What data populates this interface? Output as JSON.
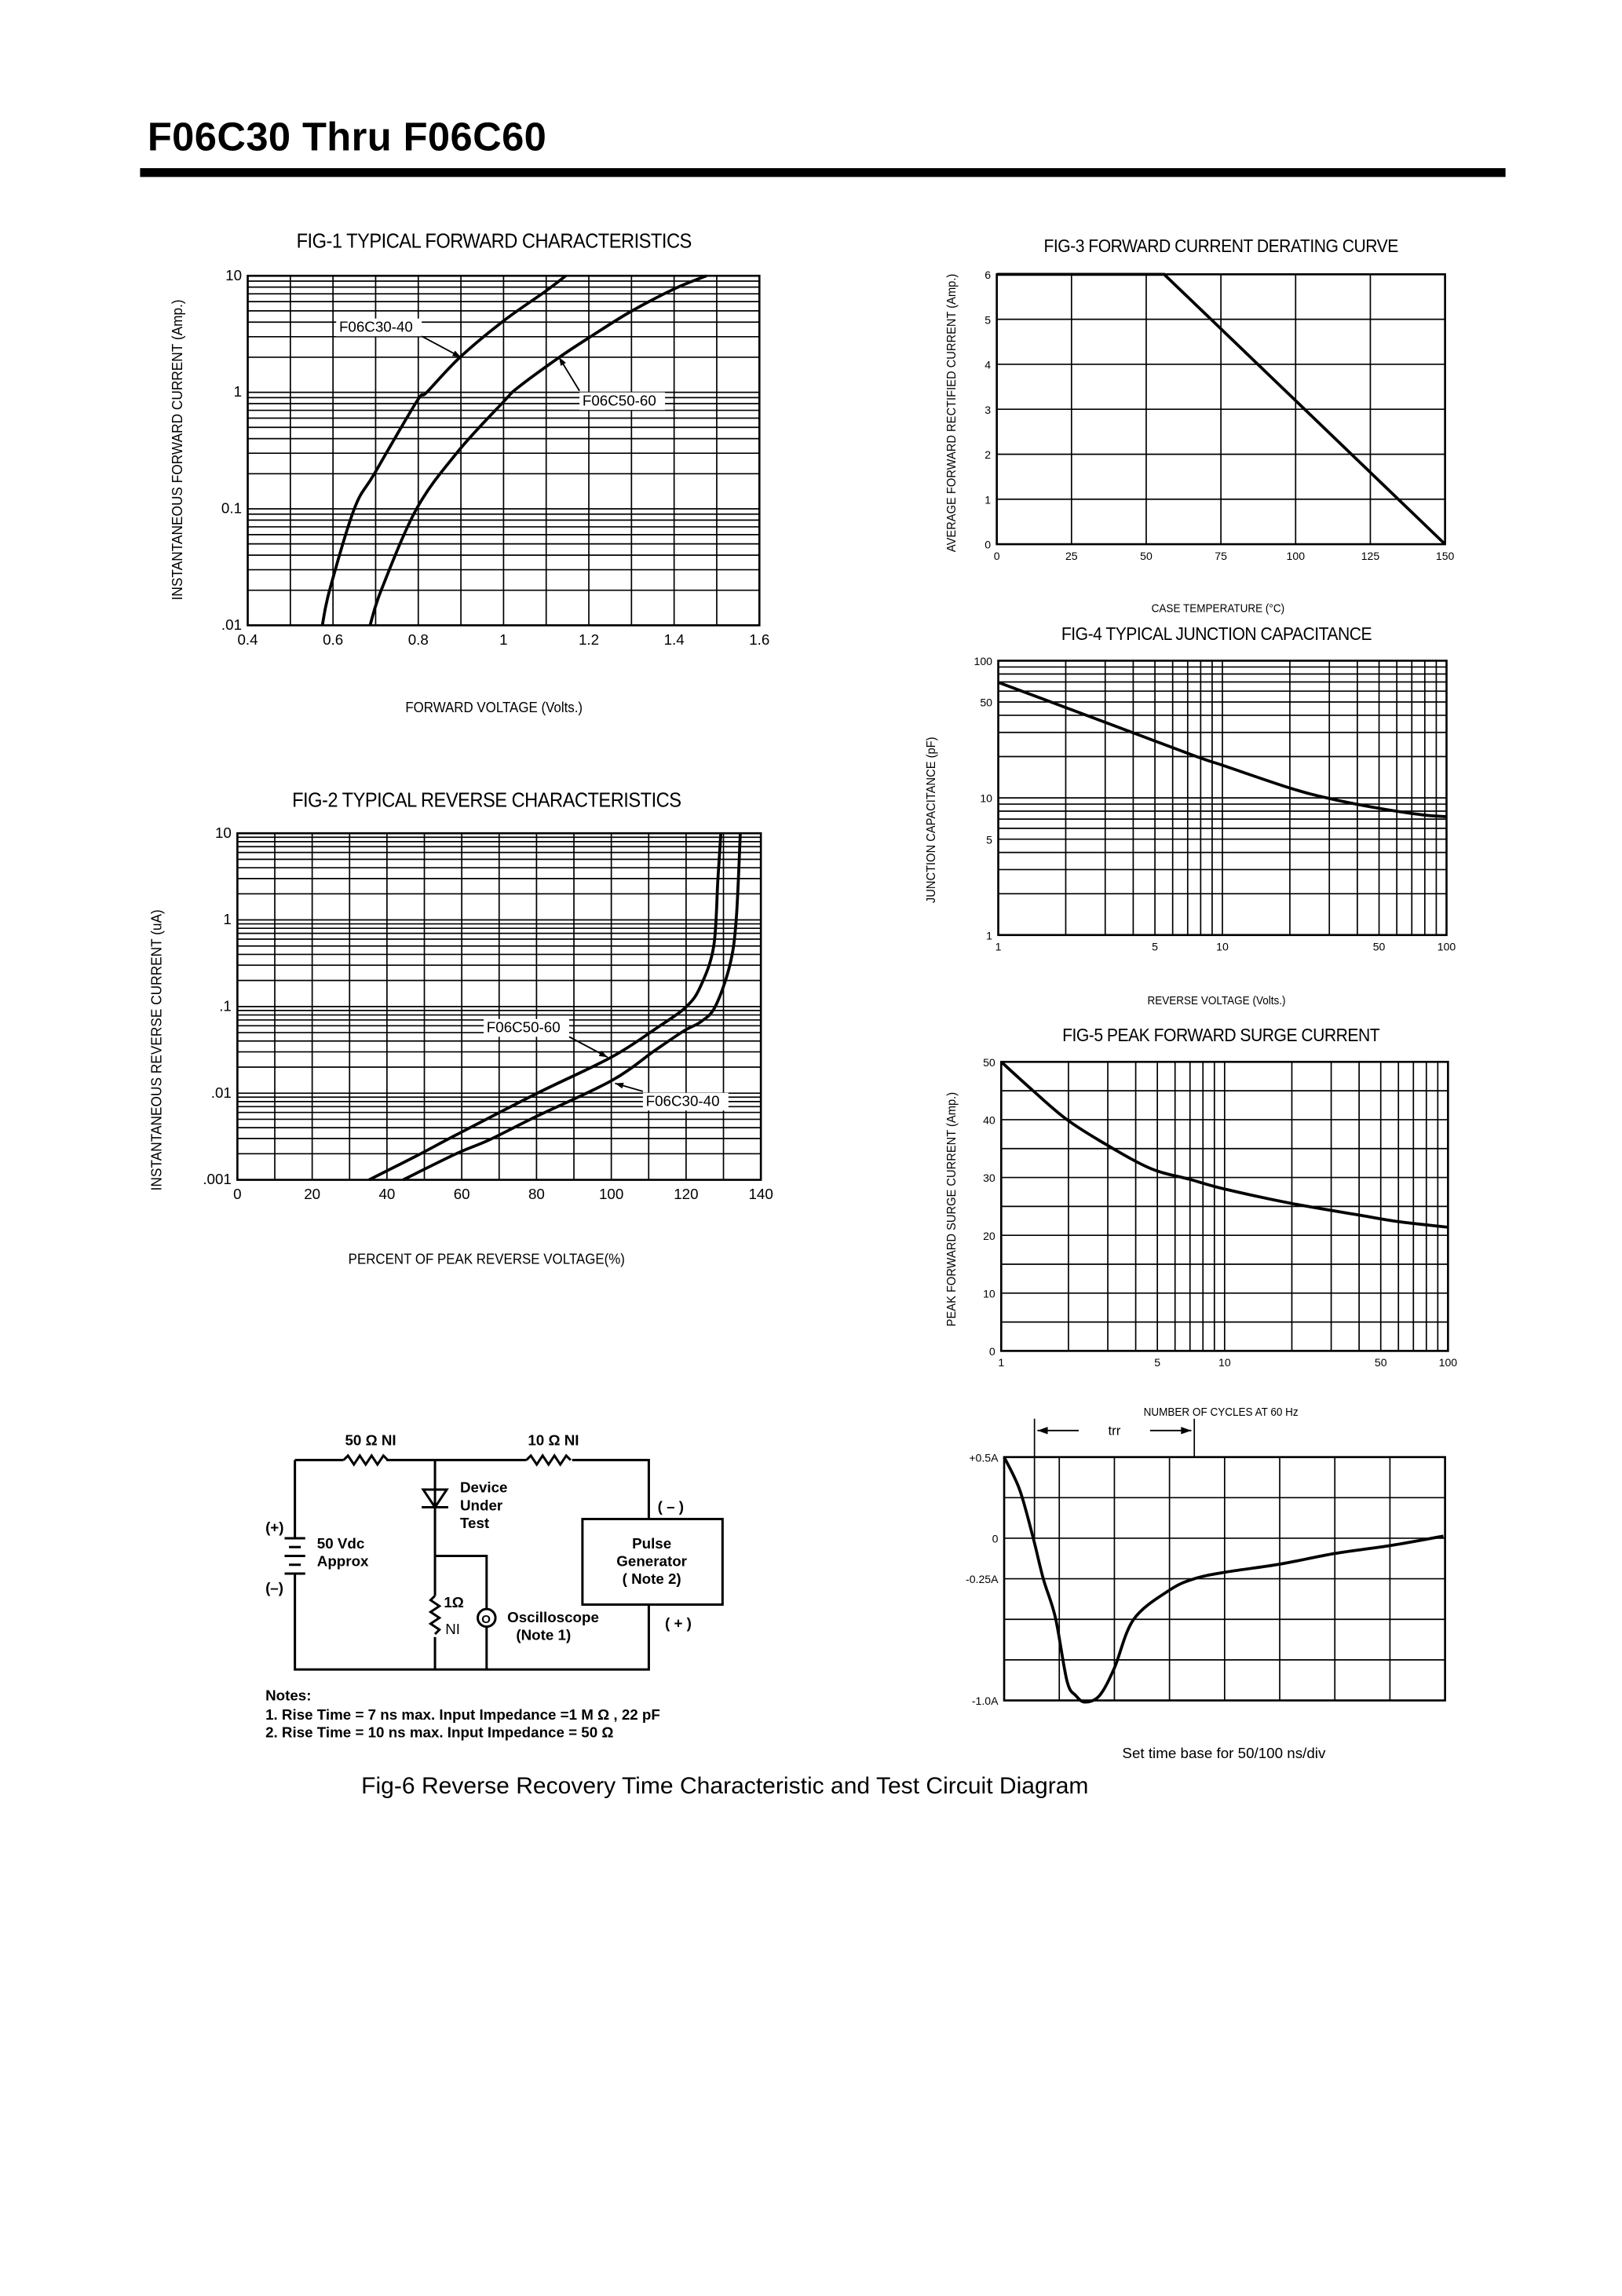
{
  "header": {
    "title": "F06C30 Thru F06C60"
  },
  "fig6": {
    "caption": "Fig-6 Reverse Recovery Time Characteristic and Test Circuit Diagram",
    "timebase_note": "Set time base for 50/100  ns/div",
    "circuit": {
      "r1_label": "50 Ω  NI",
      "r2_label": "10 Ω  NI",
      "dut_line1": "Device",
      "dut_line2": "Under",
      "dut_line3": "Test",
      "battery_plus": "(+)",
      "battery_minus": "(–)",
      "battery_line1": "50 Vdc",
      "battery_line2": "Approx",
      "r3_label": "1Ω",
      "r3_sub": "NI",
      "scope_symbol": "O",
      "scope_line1": "Oscilloscope",
      "scope_line2": "(Note 1)",
      "pulse_line1": "Pulse",
      "pulse_line2": "Generator",
      "pulse_line3": "( Note 2)",
      "pulse_minus": "( – )",
      "pulse_plus": "( + )",
      "notes_title": "Notes:",
      "note1": "1. Rise Time = 7 ns max. Input Impedance =1 M Ω , 22 pF",
      "note2": "2. Rise Time = 10 ns max. Input Impedance = 50 Ω"
    }
  },
  "chart_data": [
    {
      "id": "fig1",
      "type": "line",
      "title": "FIG-1 TYPICAL FORWARD CHARACTERISTICS",
      "xlabel": "FORWARD VOLTAGE (Volts.)",
      "ylabel": "INSTANTANEOUS FORWARD CURRENT (Amp.)",
      "xscale": "linear",
      "yscale": "log",
      "xlim": [
        0.4,
        1.6
      ],
      "ylim": [
        0.01,
        10
      ],
      "grid": true,
      "xticks": [
        0.4,
        0.6,
        0.8,
        1,
        1.2,
        1.4,
        1.6
      ],
      "xtick_labels": [
        "0.4",
        "0.6",
        "0.8",
        "1",
        "1.2",
        "1.4",
        "1.6"
      ],
      "yticks": [
        0.01,
        0.1,
        1,
        10
      ],
      "ytick_labels": [
        ".01",
        "0.1",
        "1",
        "10"
      ],
      "series": [
        {
          "name": "F06C30-40",
          "x": [
            0.575,
            0.592,
            0.65,
            0.697,
            0.796,
            0.82,
            0.898,
            1.0,
            1.097,
            1.146
          ],
          "y": [
            0.01,
            0.02,
            0.1,
            0.2,
            0.83,
            1.0,
            2.0,
            4.1,
            7.3,
            10
          ]
        },
        {
          "name": "F06C50-60",
          "x": [
            0.687,
            0.713,
            0.796,
            0.893,
            1.0,
            1.034,
            1.131,
            1.204,
            1.297,
            1.403,
            1.476
          ],
          "y": [
            0.01,
            0.02,
            0.1,
            0.31,
            0.83,
            1.1,
            2.0,
            3.0,
            4.9,
            7.8,
            10
          ]
        }
      ],
      "annotations": [
        {
          "text": "F06C30-40",
          "target": [
            0.9,
            2.0
          ]
        },
        {
          "text": "F06C50-60",
          "target": [
            1.13,
            2.0
          ]
        }
      ]
    },
    {
      "id": "fig2",
      "type": "line",
      "title": "FIG-2 TYPICAL REVERSE CHARACTERISTICS",
      "xlabel": "PERCENT OF PEAK REVERSE VOLTAGE(%)",
      "ylabel": "INSTANTANEOUS REVERSE CURRENT (uA)",
      "xscale": "linear",
      "yscale": "log",
      "xlim": [
        0,
        140
      ],
      "ylim": [
        0.001,
        10
      ],
      "grid": true,
      "xticks": [
        0,
        20,
        40,
        60,
        80,
        100,
        120,
        140
      ],
      "xtick_labels": [
        "0",
        "20",
        "40",
        "60",
        "80",
        "100",
        "120",
        "140"
      ],
      "yticks": [
        0.001,
        0.01,
        0.1,
        1,
        10
      ],
      "ytick_labels": [
        ".001",
        ".01",
        ".1",
        "1",
        "10"
      ],
      "series": [
        {
          "name": "F06C50-60",
          "x": [
            35.2,
            48,
            58.5,
            80,
            100,
            112,
            120.1,
            124,
            127.4,
            128.5,
            129.3
          ],
          "y": [
            0.001,
            0.0019,
            0.0033,
            0.0099,
            0.026,
            0.056,
            0.1,
            0.176,
            0.5,
            2.9,
            10
          ]
        },
        {
          "name": "F06C30-40",
          "x": [
            44.3,
            58.5,
            67.4,
            80,
            100,
            111.6,
            119.3,
            124,
            127.8,
            131.7,
            133.4,
            134.5
          ],
          "y": [
            0.001,
            0.002,
            0.0029,
            0.0054,
            0.0139,
            0.031,
            0.052,
            0.067,
            0.1,
            0.3,
            1.0,
            10
          ]
        }
      ],
      "annotations": [
        {
          "text": "F06C50-60",
          "target": [
            99,
            0.026
          ]
        },
        {
          "text": "F06C30-40",
          "target": [
            101,
            0.013
          ]
        }
      ]
    },
    {
      "id": "fig3",
      "type": "line",
      "title": "FIG-3 FORWARD CURRENT DERATING CURVE",
      "xlabel": "CASE TEMPERATURE (°C)",
      "ylabel": "AVERAGE FORWARD RECTIFIED CURRENT (Amp.)",
      "xscale": "linear",
      "yscale": "linear",
      "xlim": [
        0,
        150
      ],
      "ylim": [
        0,
        6
      ],
      "grid": true,
      "xticks": [
        0,
        25,
        50,
        75,
        100,
        125,
        150
      ],
      "xtick_labels": [
        "0",
        "25",
        "50",
        "75",
        "100",
        "125",
        "150"
      ],
      "yticks": [
        0,
        1,
        2,
        3,
        4,
        5,
        6
      ],
      "ytick_labels": [
        "0",
        "1",
        "2",
        "3",
        "4",
        "5",
        "6"
      ],
      "series": [
        {
          "x": [
            0,
            56,
            150
          ],
          "y": [
            6,
            6,
            0
          ]
        }
      ]
    },
    {
      "id": "fig4",
      "type": "line",
      "title": "FIG-4 TYPICAL JUNCTION CAPACITANCE",
      "xlabel": "REVERSE VOLTAGE (Volts.)",
      "ylabel": "JUNCTION CAPACITANCE (pF)",
      "xscale": "log",
      "yscale": "log",
      "xlim": [
        1,
        100
      ],
      "ylim": [
        1,
        100
      ],
      "grid": true,
      "xticks": [
        1,
        5,
        10,
        50,
        100
      ],
      "xtick_labels": [
        "1",
        "5",
        "10",
        "50",
        "100"
      ],
      "yticks": [
        1,
        5,
        10,
        50,
        100
      ],
      "ytick_labels": [
        "1",
        "5",
        "10",
        "50",
        "100"
      ],
      "series": [
        {
          "x": [
            1,
            1.97,
            4.02,
            7.8,
            10,
            20,
            30,
            49.8,
            79,
            100
          ],
          "y": [
            69.5,
            46,
            29.7,
            19.8,
            17.3,
            11.8,
            9.9,
            8.4,
            7.5,
            7.3
          ]
        }
      ]
    },
    {
      "id": "fig5",
      "type": "line",
      "title": "FIG-5 PEAK FORWARD SURGE CURRENT",
      "xlabel": "NUMBER OF CYCLES AT 60 Hz",
      "ylabel": "PEAK FORWARD SURGE CURRENT (Amp.)",
      "xscale": "log",
      "yscale": "linear",
      "xlim": [
        1,
        100
      ],
      "ylim": [
        0,
        50
      ],
      "grid": true,
      "xticks": [
        1,
        5,
        10,
        50,
        100
      ],
      "xtick_labels": [
        "1",
        "5",
        "10",
        "50",
        "100"
      ],
      "yticks": [
        0,
        10,
        20,
        30,
        40,
        50
      ],
      "ytick_labels": [
        "0",
        "10",
        "20",
        "30",
        "40",
        "50"
      ],
      "series": [
        {
          "x": [
            1,
            1.38,
            1.97,
            2.98,
            4.7,
            6.95,
            10,
            20,
            40,
            59,
            100
          ],
          "y": [
            50,
            45.1,
            40,
            35.6,
            31.5,
            29.7,
            28,
            25.5,
            23.5,
            22.4,
            21.4
          ]
        }
      ]
    },
    {
      "id": "fig6",
      "type": "line",
      "xscale": "linear",
      "yscale": "linear",
      "xlim": [
        0,
        8
      ],
      "ylim": [
        -1.0,
        0.5
      ],
      "grid": true,
      "yticks": [
        0.5,
        0,
        -0.25,
        -1.0
      ],
      "ytick_labels": [
        "+0.5A",
        "0",
        "-0.25A",
        "-1.0A"
      ],
      "series": [
        {
          "x": [
            0,
            0.28,
            0.525,
            0.71,
            0.93,
            1.14,
            1.3,
            1.47,
            1.73,
            2.0,
            2.35,
            3.0,
            3.45,
            4.0,
            5.0,
            6.0,
            7.01,
            7.97
          ],
          "y": [
            0.5,
            0.3,
            0.004,
            -0.25,
            -0.49,
            -0.88,
            -0.97,
            -1.01,
            -0.97,
            -0.8,
            -0.5,
            -0.32,
            -0.25,
            -0.21,
            -0.16,
            -0.094,
            -0.045,
            0.013
          ]
        }
      ],
      "trr": {
        "label": "trr",
        "span": [
          0.55,
          3.45
        ]
      }
    }
  ]
}
